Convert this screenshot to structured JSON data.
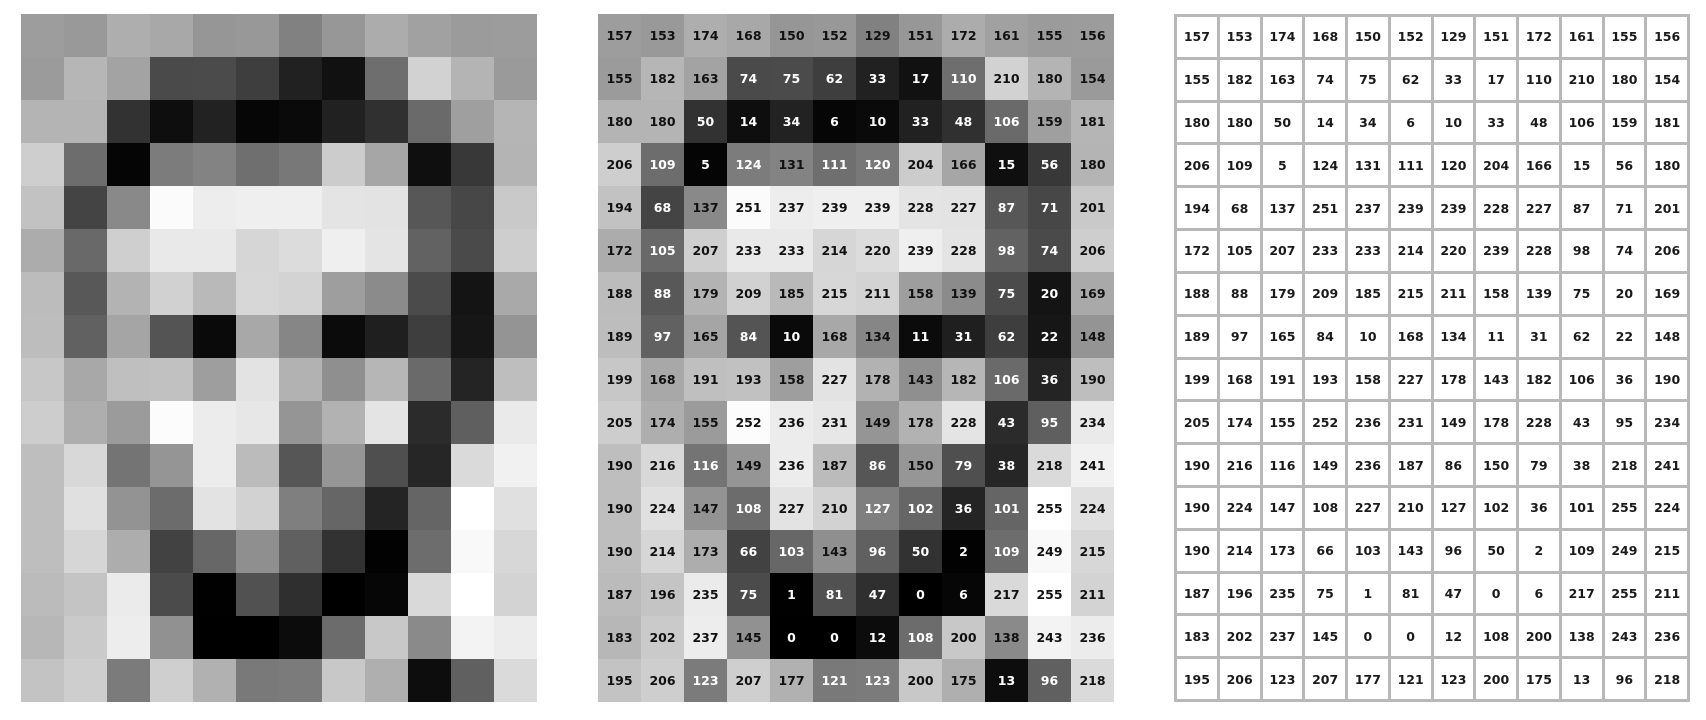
{
  "grid": {
    "rows": 16,
    "cols": 12,
    "values": [
      [
        157,
        153,
        174,
        168,
        150,
        152,
        129,
        151,
        172,
        161,
        155,
        156
      ],
      [
        155,
        182,
        163,
        74,
        75,
        62,
        33,
        17,
        110,
        210,
        180,
        154
      ],
      [
        180,
        180,
        50,
        14,
        34,
        6,
        10,
        33,
        48,
        106,
        159,
        181
      ],
      [
        206,
        109,
        5,
        124,
        131,
        111,
        120,
        204,
        166,
        15,
        56,
        180
      ],
      [
        194,
        68,
        137,
        251,
        237,
        239,
        239,
        228,
        227,
        87,
        71,
        201
      ],
      [
        172,
        105,
        207,
        233,
        233,
        214,
        220,
        239,
        228,
        98,
        74,
        206
      ],
      [
        188,
        88,
        179,
        209,
        185,
        215,
        211,
        158,
        139,
        75,
        20,
        169
      ],
      [
        189,
        97,
        165,
        84,
        10,
        168,
        134,
        11,
        31,
        62,
        22,
        148
      ],
      [
        199,
        168,
        191,
        193,
        158,
        227,
        178,
        143,
        182,
        106,
        36,
        190
      ],
      [
        205,
        174,
        155,
        252,
        236,
        231,
        149,
        178,
        228,
        43,
        95,
        234
      ],
      [
        190,
        216,
        116,
        149,
        236,
        187,
        86,
        150,
        79,
        38,
        218,
        241
      ],
      [
        190,
        224,
        147,
        108,
        227,
        210,
        127,
        102,
        36,
        101,
        255,
        224
      ],
      [
        190,
        214,
        173,
        66,
        103,
        143,
        96,
        50,
        2,
        109,
        249,
        215
      ],
      [
        187,
        196,
        235,
        75,
        1,
        81,
        47,
        0,
        6,
        217,
        255,
        211
      ],
      [
        183,
        202,
        237,
        145,
        0,
        0,
        12,
        108,
        200,
        138,
        243,
        236
      ],
      [
        195,
        206,
        123,
        207,
        177,
        121,
        123,
        200,
        175,
        13,
        96,
        218
      ]
    ]
  },
  "colors": {
    "background": "#ffffff",
    "table_border": "#b8b8b8",
    "table_cell": "#ffffff",
    "table_text": "#1a1a1a"
  }
}
